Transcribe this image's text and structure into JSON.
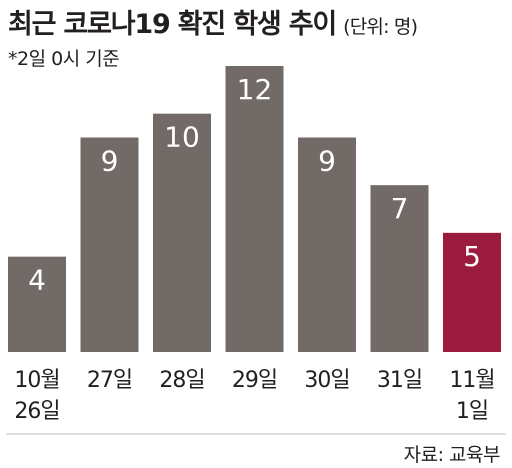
{
  "header": {
    "title": "최근 코로나19 확진 학생 추이",
    "unit": "(단위: 명)",
    "note": "*2일 0시 기준"
  },
  "footer": {
    "source": "자료: 교육부"
  },
  "chart_data": {
    "type": "bar",
    "title": "최근 코로나19 확진 학생 추이",
    "unit": "(단위: 명)",
    "categories": [
      [
        "10월",
        "26일"
      ],
      [
        "27일"
      ],
      [
        "28일"
      ],
      [
        "29일"
      ],
      [
        "30일"
      ],
      [
        "31일"
      ],
      [
        "11월",
        "1일"
      ]
    ],
    "values": [
      4,
      9,
      10,
      12,
      9,
      7,
      5
    ],
    "colors": {
      "default": "#716a66",
      "highlight": "#9b1b3f",
      "value_label": "#ffffff",
      "axis_label": "#231f20",
      "rule": "#bcbcbc"
    },
    "highlight_index": 6,
    "xlabel": "",
    "ylabel": "",
    "ylim": [
      0,
      12
    ],
    "grid": false,
    "legend": "none"
  }
}
